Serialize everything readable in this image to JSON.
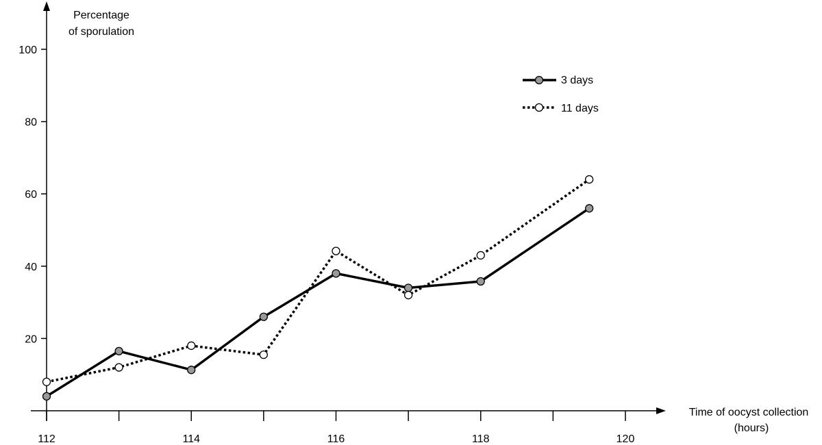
{
  "chart_data": {
    "type": "line",
    "title": "",
    "ylabel_lines": [
      "Percentage",
      "of sporulation"
    ],
    "xlabel_lines": [
      "Time of oocyst collection",
      "(hours)"
    ],
    "xlim": [
      112,
      120
    ],
    "ylim": [
      0,
      100
    ],
    "x_ticks": [
      112,
      113,
      114,
      115,
      116,
      117,
      118,
      119,
      120
    ],
    "x_tick_labels": [
      {
        "x": 112,
        "label": "112"
      },
      {
        "x": 114,
        "label": "114"
      },
      {
        "x": 116,
        "label": "116"
      },
      {
        "x": 118,
        "label": "118"
      },
      {
        "x": 120,
        "label": "120"
      }
    ],
    "y_ticks": [
      20,
      40,
      60,
      80,
      100
    ],
    "y_tick_labels": [
      "20",
      "40",
      "60",
      "80",
      "100"
    ],
    "grid": false,
    "legend_position": "top-right",
    "series": [
      {
        "name": "3 days",
        "line_style": "solid",
        "marker": "filled-gray-circle",
        "marker_color": "#999999",
        "points": [
          {
            "x": 112,
            "y": 4
          },
          {
            "x": 113,
            "y": 16.5
          },
          {
            "x": 114,
            "y": 11.3
          },
          {
            "x": 115,
            "y": 26
          },
          {
            "x": 116,
            "y": 38
          },
          {
            "x": 117,
            "y": 34
          },
          {
            "x": 118,
            "y": 35.8
          },
          {
            "x": 119.5,
            "y": 56
          }
        ]
      },
      {
        "name": "11 days",
        "line_style": "dotted",
        "marker": "open-circle",
        "marker_color": "#ffffff",
        "points": [
          {
            "x": 112,
            "y": 8
          },
          {
            "x": 113,
            "y": 12
          },
          {
            "x": 114,
            "y": 18
          },
          {
            "x": 115,
            "y": 15.5
          },
          {
            "x": 116,
            "y": 44.2
          },
          {
            "x": 117,
            "y": 32
          },
          {
            "x": 118,
            "y": 43
          },
          {
            "x": 119.5,
            "y": 64
          }
        ]
      }
    ]
  }
}
